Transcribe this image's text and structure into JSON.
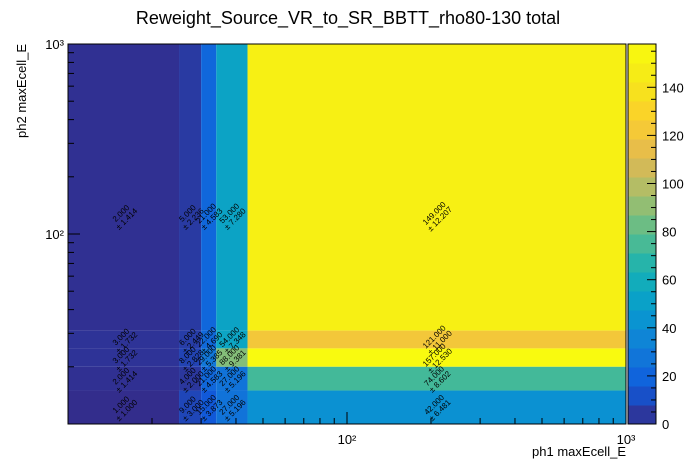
{
  "chart_data": {
    "type": "heatmap",
    "title": "Reweight_Source_VR_to_SR_BBTT_rho80-130 total",
    "xlabel": "ph1 maxEcell_E",
    "ylabel": "ph2 maxEcell_E",
    "xscale": "log",
    "yscale": "log",
    "xlim": [
      10,
      1000
    ],
    "ylim": [
      10,
      1000
    ],
    "x_edges": [
      10,
      25,
      30,
      34,
      44,
      1000
    ],
    "y_edges": [
      10,
      15,
      20,
      25,
      31,
      1000
    ],
    "x_tick_labels": [
      "10²",
      "10³"
    ],
    "y_tick_labels": [
      "10²",
      "10³"
    ],
    "colorbar": {
      "min": 0,
      "max": 158,
      "tick_values": [
        0,
        20,
        40,
        60,
        80,
        100,
        120,
        140
      ],
      "tick_labels": [
        "0",
        "20",
        "40",
        "60",
        "80",
        "100",
        "120",
        "140"
      ]
    },
    "cells": [
      {
        "xi": 0,
        "yi": 4,
        "value": 2.0,
        "label": "2.000",
        "err": "± 1.414"
      },
      {
        "xi": 1,
        "yi": 4,
        "value": 5.0,
        "label": "5.000",
        "err": "± 2.236"
      },
      {
        "xi": 2,
        "yi": 4,
        "value": 21.0,
        "label": "21.000",
        "err": "± 4.583"
      },
      {
        "xi": 3,
        "yi": 4,
        "value": 53.0,
        "label": "53.000",
        "err": "± 7.280"
      },
      {
        "xi": 4,
        "yi": 4,
        "value": 149.0,
        "label": "149.000",
        "err": "± 12.207"
      },
      {
        "xi": 0,
        "yi": 3,
        "value": 3.0,
        "label": "3.000",
        "err": "± 1.732"
      },
      {
        "xi": 1,
        "yi": 3,
        "value": 6.0,
        "label": "6.000",
        "err": "± 2.449"
      },
      {
        "xi": 2,
        "yi": 3,
        "value": 22.0,
        "label": "22.000",
        "err": "± 4.690"
      },
      {
        "xi": 3,
        "yi": 3,
        "value": 54.0,
        "label": "54.000",
        "err": "± 7.348"
      },
      {
        "xi": 4,
        "yi": 3,
        "value": 121.0,
        "label": "121.000",
        "err": "± 11.000"
      },
      {
        "xi": 0,
        "yi": 2,
        "value": 3.0,
        "label": "3.000",
        "err": "± 1.732"
      },
      {
        "xi": 1,
        "yi": 2,
        "value": 8.0,
        "label": "8.000",
        "err": "± 2.828"
      },
      {
        "xi": 2,
        "yi": 2,
        "value": 29.0,
        "label": "29.000",
        "err": "± 5.385"
      },
      {
        "xi": 3,
        "yi": 2,
        "value": 88.0,
        "label": "88.000",
        "err": "± 9.381"
      },
      {
        "xi": 4,
        "yi": 2,
        "value": 157.0,
        "label": "157.000",
        "err": "± 12.530"
      },
      {
        "xi": 0,
        "yi": 1,
        "value": 2.0,
        "label": "2.000",
        "err": "± 1.414"
      },
      {
        "xi": 1,
        "yi": 1,
        "value": 4.0,
        "label": "4.000",
        "err": "± 2.000"
      },
      {
        "xi": 2,
        "yi": 1,
        "value": 21.0,
        "label": "21.000",
        "err": "± 4.583"
      },
      {
        "xi": 3,
        "yi": 1,
        "value": 27.0,
        "label": "27.000",
        "err": "± 5.196"
      },
      {
        "xi": 4,
        "yi": 1,
        "value": 74.0,
        "label": "74.000",
        "err": "± 8.602"
      },
      {
        "xi": 0,
        "yi": 0,
        "value": 1.0,
        "label": "1.000",
        "err": "± 1.000"
      },
      {
        "xi": 1,
        "yi": 0,
        "value": 9.0,
        "label": "9.000",
        "err": "± 3.000"
      },
      {
        "xi": 2,
        "yi": 0,
        "value": 15.0,
        "label": "15.000",
        "err": "± 3.873"
      },
      {
        "xi": 3,
        "yi": 0,
        "value": 27.0,
        "label": "27.000",
        "err": "± 5.196"
      },
      {
        "xi": 4,
        "yi": 0,
        "value": 42.0,
        "label": "42.000",
        "err": "± 6.481"
      }
    ]
  }
}
